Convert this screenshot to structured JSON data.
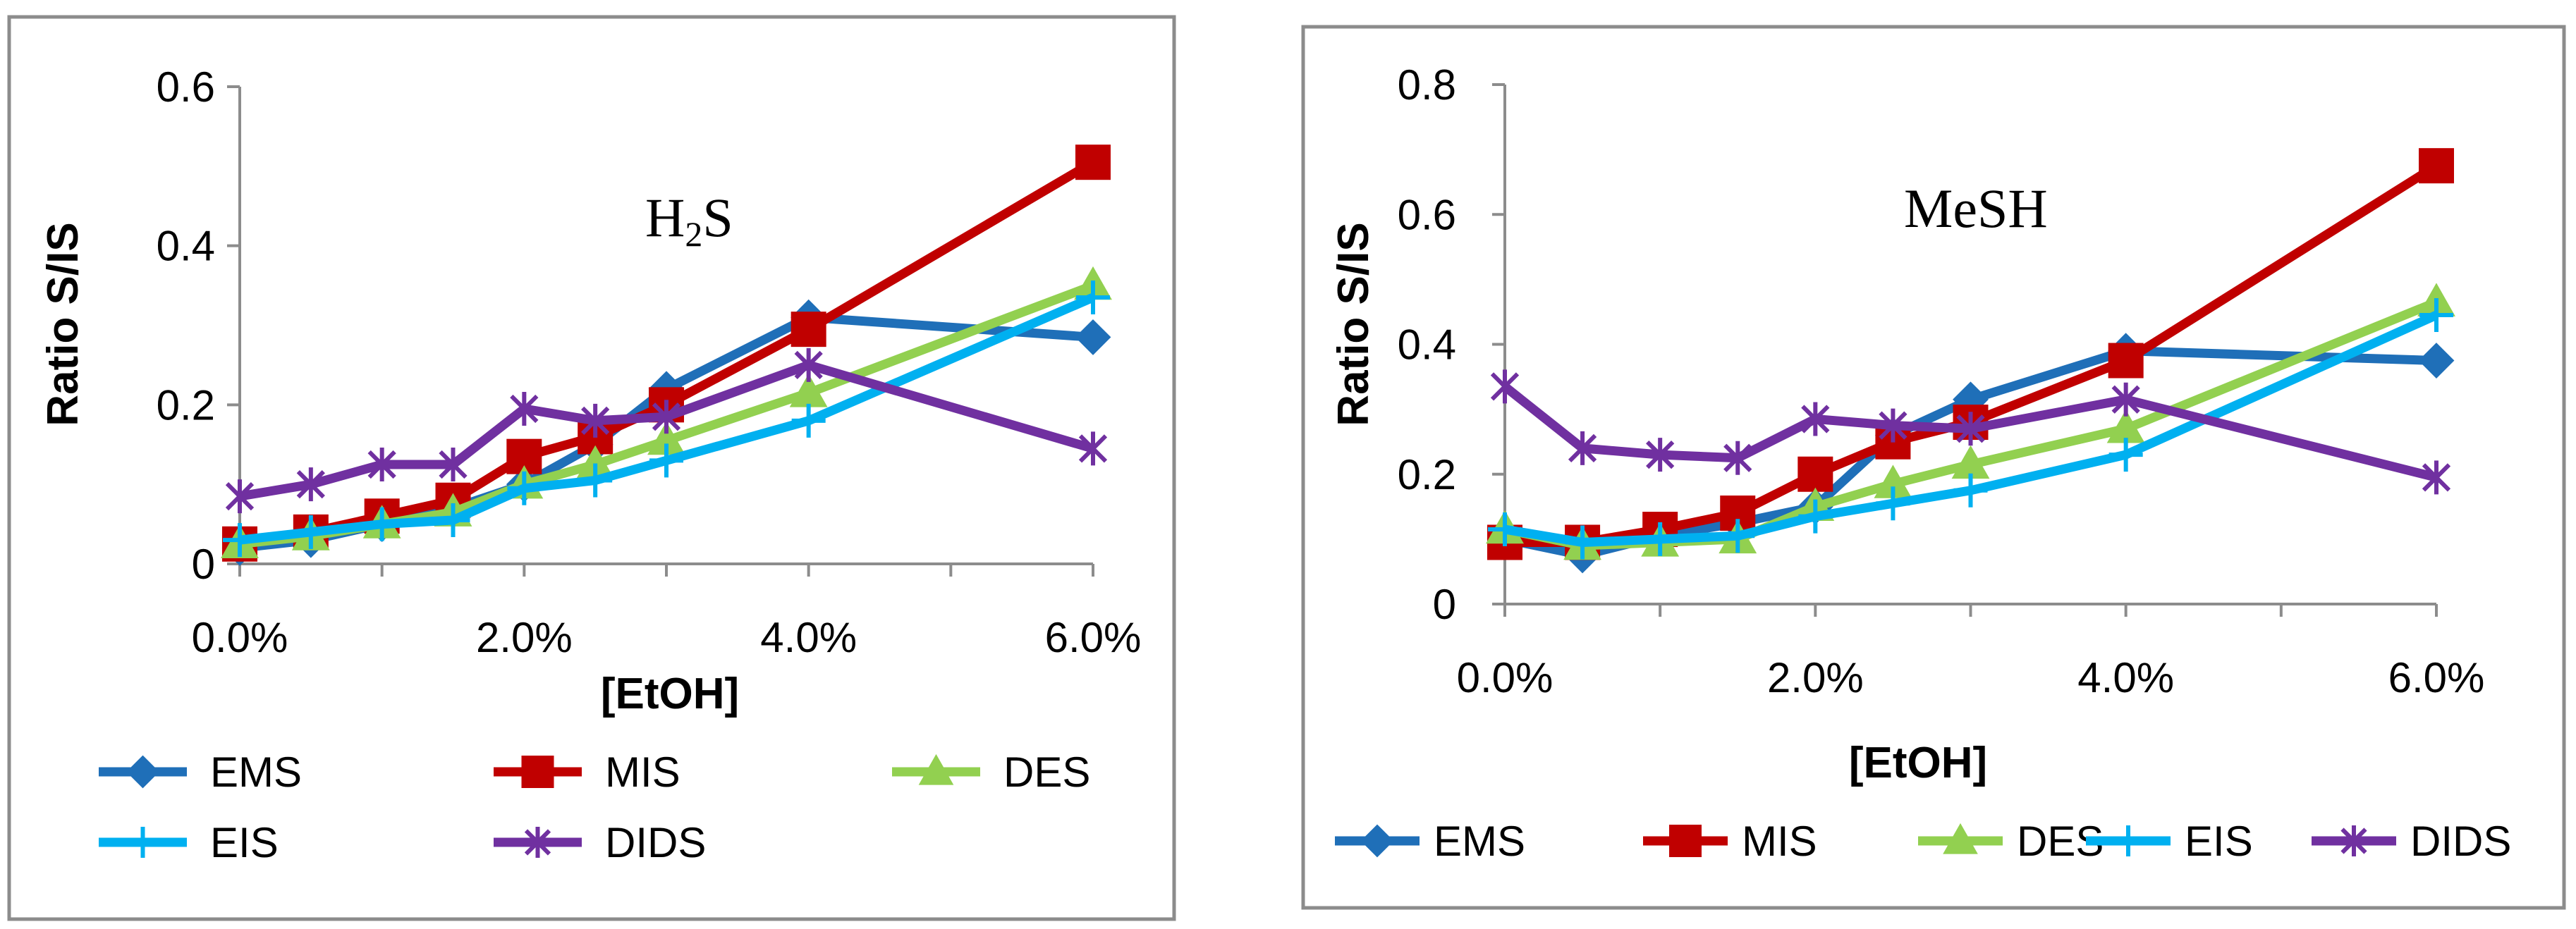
{
  "chart_data": [
    {
      "type": "line",
      "title": "H2S",
      "title_main": "H",
      "title_sub": "2",
      "title_tail": "S",
      "xlabel": "[EtOH]",
      "ylabel": "Ratio S/IS",
      "x": [
        0.0,
        0.5,
        1.0,
        1.5,
        2.0,
        2.5,
        3.0,
        4.0,
        6.0
      ],
      "xlim": [
        0,
        6
      ],
      "ylim": [
        0,
        0.6
      ],
      "x_ticks": [
        "0.0%",
        "2.0%",
        "4.0%",
        "6.0%"
      ],
      "y_ticks": [
        "0",
        "0.2",
        "0.4",
        "0.6"
      ],
      "series": [
        {
          "name": "EMS",
          "color": "#1f6fb8",
          "marker": "diamond",
          "values": [
            0.02,
            0.03,
            0.05,
            0.07,
            0.1,
            0.15,
            0.22,
            0.31,
            0.285
          ]
        },
        {
          "name": "MIS",
          "color": "#c00000",
          "marker": "square",
          "values": [
            0.025,
            0.04,
            0.06,
            0.08,
            0.135,
            0.16,
            0.2,
            0.295,
            0.505
          ]
        },
        {
          "name": "DES",
          "color": "#92d050",
          "marker": "triangle",
          "values": [
            0.025,
            0.035,
            0.05,
            0.065,
            0.1,
            0.125,
            0.155,
            0.215,
            0.35
          ]
        },
        {
          "name": "EIS",
          "color": "#00b0f0",
          "marker": "plus",
          "values": [
            0.03,
            0.04,
            0.05,
            0.055,
            0.095,
            0.105,
            0.13,
            0.18,
            0.335
          ]
        },
        {
          "name": "DIDS",
          "color": "#7030a0",
          "marker": "star",
          "values": [
            0.085,
            0.1,
            0.125,
            0.125,
            0.195,
            0.18,
            0.185,
            0.25,
            0.145
          ]
        }
      ],
      "legend_rows": [
        [
          "EMS",
          "MIS",
          "DES"
        ],
        [
          "EIS",
          "DIDS"
        ]
      ]
    },
    {
      "type": "line",
      "title": "MeSH",
      "xlabel": "[EtOH]",
      "ylabel": "Ratio S/IS",
      "x": [
        0.0,
        0.5,
        1.0,
        1.5,
        2.0,
        2.5,
        3.0,
        4.0,
        6.0
      ],
      "xlim": [
        0,
        6
      ],
      "ylim": [
        0,
        0.8
      ],
      "x_ticks": [
        "0.0%",
        "2.0%",
        "4.0%",
        "6.0%"
      ],
      "y_ticks": [
        "0",
        "0.2",
        "0.4",
        "0.6",
        "0.8"
      ],
      "series": [
        {
          "name": "EMS",
          "color": "#1f6fb8",
          "marker": "diamond",
          "values": [
            0.1,
            0.075,
            0.105,
            0.125,
            0.15,
            0.26,
            0.315,
            0.39,
            0.375
          ]
        },
        {
          "name": "MIS",
          "color": "#c00000",
          "marker": "square",
          "values": [
            0.095,
            0.095,
            0.115,
            0.14,
            0.2,
            0.25,
            0.28,
            0.375,
            0.675
          ]
        },
        {
          "name": "DES",
          "color": "#92d050",
          "marker": "triangle",
          "values": [
            0.115,
            0.09,
            0.095,
            0.1,
            0.15,
            0.185,
            0.215,
            0.27,
            0.465
          ]
        },
        {
          "name": "EIS",
          "color": "#00b0f0",
          "marker": "plus",
          "values": [
            0.115,
            0.095,
            0.1,
            0.105,
            0.135,
            0.155,
            0.175,
            0.23,
            0.445
          ]
        },
        {
          "name": "DIDS",
          "color": "#7030a0",
          "marker": "star",
          "values": [
            0.335,
            0.24,
            0.23,
            0.225,
            0.285,
            0.275,
            0.27,
            0.315,
            0.195
          ]
        }
      ],
      "legend_rows": [
        [
          "EMS",
          "MIS",
          "DES",
          "EIS",
          "DIDS"
        ]
      ]
    }
  ]
}
